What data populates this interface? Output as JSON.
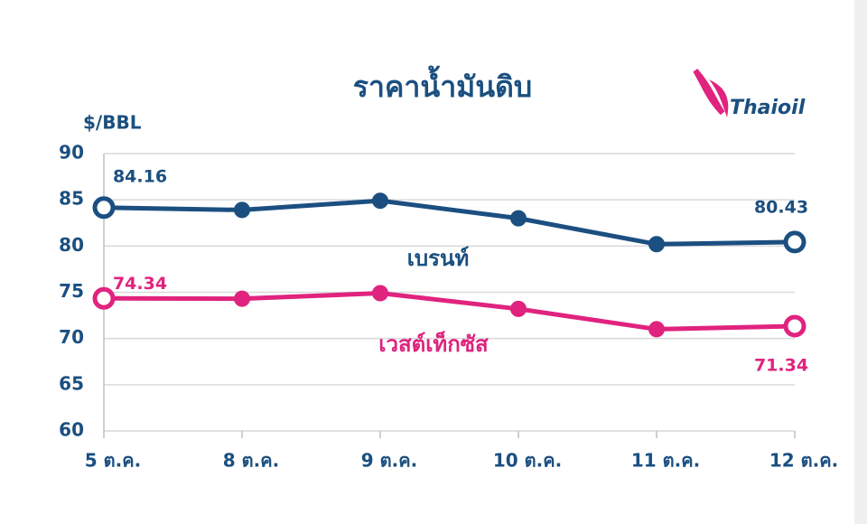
{
  "chart_data": {
    "type": "line",
    "title": "ราคาน้ำมันดิบ",
    "y_label": "$/BBL",
    "logo": "Thaioil",
    "categories": [
      "5 ต.ค.",
      "8 ต.ค.",
      "9 ต.ค.",
      "10 ต.ค.",
      "11 ต.ค.",
      "12 ต.ค."
    ],
    "series": [
      {
        "name": "เบรนท์",
        "color": "#1b4f80",
        "values": [
          84.16,
          83.9,
          84.9,
          83.0,
          80.2,
          80.43
        ],
        "value_labels": [
          "84.16",
          null,
          null,
          null,
          null,
          "80.43"
        ]
      },
      {
        "name": "เวสต์เท็กซัส",
        "color": "#e0237f",
        "values": [
          74.34,
          74.3,
          74.9,
          73.2,
          71.0,
          71.34
        ],
        "value_labels": [
          "74.34",
          null,
          null,
          null,
          null,
          "71.34"
        ]
      }
    ],
    "ylim": [
      60,
      90
    ],
    "yticks": [
      60,
      65,
      70,
      75,
      80,
      85,
      90
    ],
    "grid": true
  }
}
